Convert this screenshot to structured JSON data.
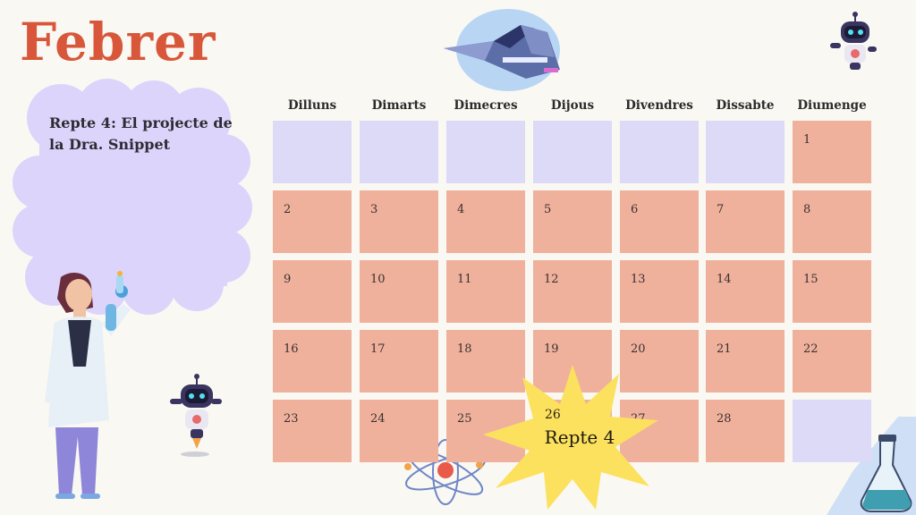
{
  "month": "Febrer",
  "challenge": "Repte 4: El projecte de la Dra. Snippet",
  "weekdays": [
    "Dilluns",
    "Dimarts",
    "Dimecres",
    "Dijous",
    "Divendres",
    "Dissabte",
    "Diumenge"
  ],
  "weeks": [
    [
      "",
      "",
      "",
      "",
      "",
      "",
      "1"
    ],
    [
      "2",
      "3",
      "4",
      "5",
      "6",
      "7",
      "8"
    ],
    [
      "9",
      "10",
      "11",
      "12",
      "13",
      "14",
      "15"
    ],
    [
      "16",
      "17",
      "18",
      "19",
      "20",
      "21",
      "22"
    ],
    [
      "23",
      "24",
      "25",
      "26",
      "27",
      "28",
      ""
    ]
  ],
  "highlight": {
    "day": "26",
    "label": "Repte 4"
  },
  "colors": {
    "title": "#d8573a",
    "day_cell": "#efb19c",
    "empty_cell": "#dcdaf6",
    "cloud": "#dcd4fb",
    "star": "#fbe15e"
  },
  "icons": [
    "spaceship-illustration",
    "robot-illustration",
    "scientist-illustration",
    "atom-illustration",
    "flask-illustration"
  ]
}
